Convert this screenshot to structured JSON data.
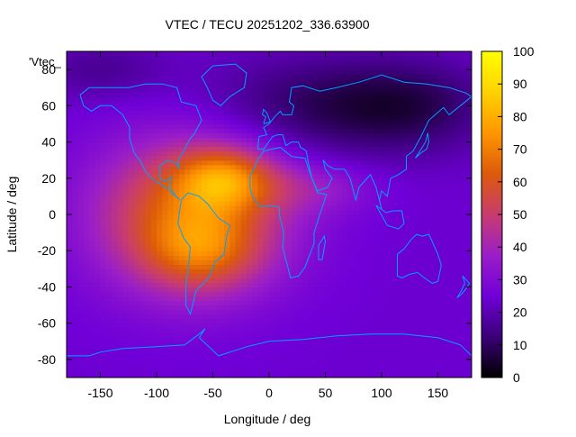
{
  "chart_data": {
    "type": "heatmap",
    "title": "VTEC / TECU 20251202_336.63900",
    "xlabel": "Longitude / deg",
    "ylabel": "Latitude / deg",
    "legend_label": "'Vtec_",
    "xlim": [
      -180,
      180
    ],
    "ylim": [
      -90,
      90
    ],
    "x_ticks": [
      -150,
      -100,
      -50,
      0,
      50,
      100,
      150
    ],
    "y_ticks": [
      -80,
      -60,
      -40,
      -20,
      0,
      20,
      40,
      60,
      80
    ],
    "colorbar": {
      "range": [
        0,
        100
      ],
      "ticks": [
        0,
        10,
        20,
        30,
        40,
        50,
        60,
        70,
        80,
        90,
        100
      ],
      "colormap": [
        "#000000",
        "#3b0078",
        "#7000d8",
        "#9a1ec8",
        "#c83c6e",
        "#dc5a0a",
        "#ff9600",
        "#ffd200",
        "#ffff00"
      ]
    },
    "grid": false,
    "coastline_color": "#00a0ff",
    "field": {
      "background_vtec": 24,
      "anomalies": [
        {
          "lon": -70,
          "lat": 0,
          "sigma_lon": 60,
          "sigma_lat": 30,
          "vtec": 40
        },
        {
          "lon": -40,
          "lat": 20,
          "sigma_lon": 30,
          "sigma_lat": 12,
          "vtec": 30
        },
        {
          "lon": -60,
          "lat": -20,
          "sigma_lon": 35,
          "sigma_lat": 15,
          "vtec": 20
        },
        {
          "lon": 40,
          "lat": 15,
          "sigma_lon": 40,
          "sigma_lat": 10,
          "vtec": 10
        },
        {
          "lon": 40,
          "lat": 60,
          "sigma_lon": 70,
          "sigma_lat": 20,
          "vtec": -14
        },
        {
          "lon": 130,
          "lat": 60,
          "sigma_lon": 50,
          "sigma_lat": 18,
          "vtec": -12
        },
        {
          "lon": -150,
          "lat": 80,
          "sigma_lon": 40,
          "sigma_lat": 12,
          "vtec": -8
        }
      ]
    }
  }
}
